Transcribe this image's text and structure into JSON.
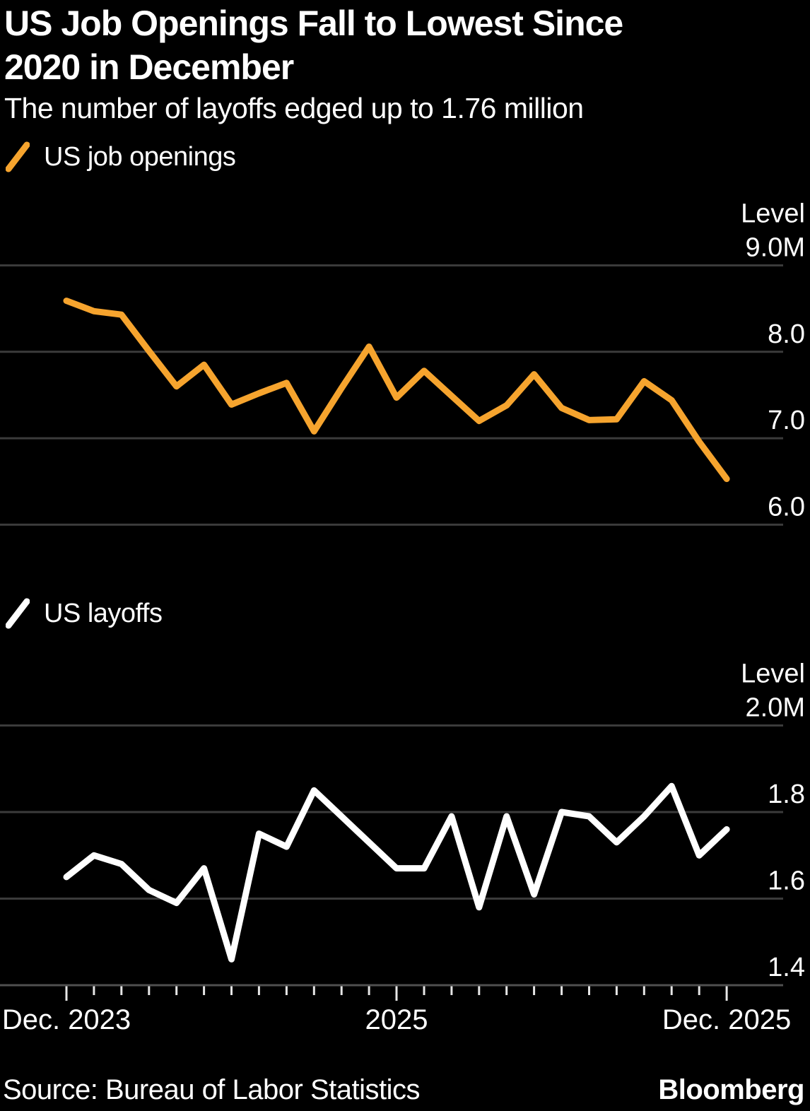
{
  "header": {
    "title_line1": "US Job Openings Fall to Lowest Since",
    "title_line2": "2020 in December",
    "subtitle": "The number of layoffs edged up to 1.76 million"
  },
  "footer": {
    "source": "Source: Bureau of Labor Statistics",
    "brand": "Bloomberg"
  },
  "colors": {
    "background": "#000000",
    "openings_line": "#F6A42E",
    "layoffs_line": "#FFFFFF",
    "gridline": "#3B3B3B",
    "axis_line": "#4F4F4F",
    "tick": "#E6E6E6",
    "text": "#FFFFFF"
  },
  "x_axis": {
    "labels": [
      {
        "text": "Dec. 2023",
        "month_index": 0
      },
      {
        "text": "2025",
        "month_index": 12
      },
      {
        "text": "Dec. 2025",
        "month_index": 24
      }
    ]
  },
  "chart_data": [
    {
      "type": "line",
      "series_id": "us-job-openings",
      "legend": "US job openings",
      "color": "#F6A42E",
      "title": "US job openings, monthly level (millions)",
      "ylabel": "Level",
      "yticks": [
        "9.0M",
        "8.0",
        "7.0",
        "6.0"
      ],
      "ytick_values": [
        9.0,
        8.0,
        7.0,
        6.0
      ],
      "ylim": [
        5.7,
        9.4
      ],
      "grid": true,
      "legend_position": "top-left",
      "x": [
        "Dec 2023",
        "Jan 2024",
        "Feb 2024",
        "Mar 2024",
        "Apr 2024",
        "May 2024",
        "Jun 2024",
        "Jul 2024",
        "Aug 2024",
        "Sep 2024",
        "Oct 2024",
        "Nov 2024",
        "Dec 2024",
        "Jan 2025",
        "Feb 2025",
        "Mar 2025",
        "Apr 2025",
        "May 2025",
        "Jun 2025",
        "Jul 2025",
        "Aug 2025",
        "Sep 2025",
        "Oct 2025",
        "Nov 2025",
        "Dec 2025"
      ],
      "values": [
        8.59,
        8.47,
        8.43,
        8.01,
        7.6,
        7.85,
        7.39,
        7.52,
        7.64,
        7.08,
        7.58,
        8.06,
        7.47,
        7.78,
        7.49,
        7.2,
        7.38,
        7.74,
        7.35,
        7.21,
        7.22,
        7.66,
        7.44,
        6.96,
        6.53
      ]
    },
    {
      "type": "line",
      "series_id": "us-layoffs",
      "legend": "US layoffs",
      "color": "#FFFFFF",
      "title": "US layoffs, monthly level (millions)",
      "ylabel": "Level",
      "yticks": [
        "2.0M",
        "1.8",
        "1.6",
        "1.4"
      ],
      "ytick_values": [
        2.0,
        1.8,
        1.6,
        1.4
      ],
      "ylim": [
        1.4,
        2.05
      ],
      "grid": true,
      "legend_position": "top-left",
      "x": [
        "Dec 2023",
        "Jan 2024",
        "Feb 2024",
        "Mar 2024",
        "Apr 2024",
        "May 2024",
        "Jun 2024",
        "Jul 2024",
        "Aug 2024",
        "Sep 2024",
        "Oct 2024",
        "Nov 2024",
        "Dec 2024",
        "Jan 2025",
        "Feb 2025",
        "Mar 2025",
        "Apr 2025",
        "May 2025",
        "Jun 2025",
        "Jul 2025",
        "Aug 2025",
        "Sep 2025",
        "Oct 2025",
        "Nov 2025",
        "Dec 2025"
      ],
      "values": [
        1.65,
        1.7,
        1.68,
        1.62,
        1.59,
        1.67,
        1.46,
        1.75,
        1.72,
        1.85,
        1.79,
        1.73,
        1.67,
        1.67,
        1.79,
        1.58,
        1.79,
        1.61,
        1.8,
        1.79,
        1.73,
        1.79,
        1.86,
        1.7,
        1.76
      ]
    }
  ]
}
